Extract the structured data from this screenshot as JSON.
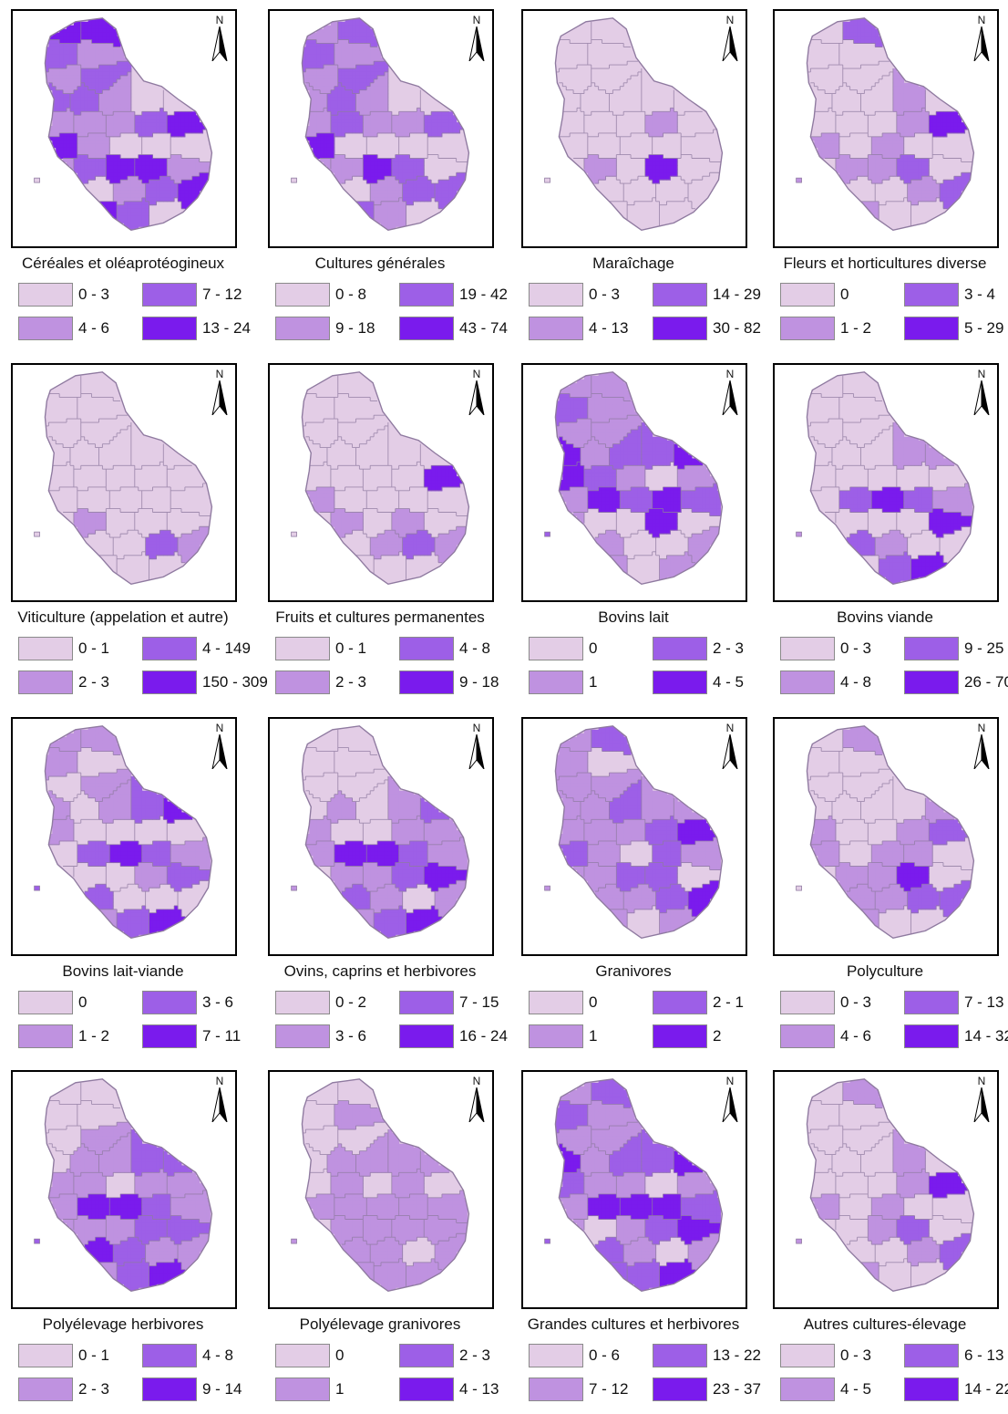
{
  "colors": {
    "class_1": "#e3cde6",
    "class_2": "#bf92e0",
    "class_3": "#9d5fe7",
    "class_4": "#7a1bed",
    "boundary": "#8f7aa0"
  },
  "north_label": "N",
  "panels": [
    {
      "title": "Céréales et oléaprotéogineux",
      "legend": [
        "0 - 3",
        "4 - 6",
        "7 - 12",
        "13 - 24"
      ],
      "shading": [
        3,
        3,
        2,
        1,
        1,
        2,
        2,
        2,
        1,
        0,
        0,
        1,
        1,
        1,
        2,
        3,
        3,
        1,
        0,
        0,
        0,
        1,
        2,
        3,
        3,
        1,
        0,
        0,
        1,
        2,
        3,
        3,
        2,
        0,
        1,
        2,
        3,
        2
      ]
    },
    {
      "title": "Cultures générales",
      "legend": [
        "0 - 8",
        "9 - 18",
        "19 - 42",
        "43 - 74"
      ],
      "shading": [
        1,
        2,
        2,
        1,
        1,
        2,
        1,
        2,
        1,
        0,
        0,
        1,
        2,
        1,
        1,
        2,
        3,
        0,
        0,
        0,
        0,
        1,
        1,
        3,
        2,
        0,
        0,
        0,
        1,
        2,
        2,
        2,
        1,
        0,
        0,
        1,
        2,
        1
      ]
    },
    {
      "title": "Maraîchage",
      "legend": [
        "0 - 3",
        "4 - 13",
        "14 - 29",
        "30 - 82"
      ],
      "shading": [
        0,
        0,
        0,
        0,
        0,
        0,
        0,
        0,
        0,
        0,
        0,
        0,
        0,
        0,
        1,
        0,
        0,
        0,
        0,
        0,
        0,
        0,
        1,
        0,
        3,
        0,
        0,
        0,
        0,
        0,
        0,
        0,
        0,
        0,
        0,
        0,
        1,
        0
      ]
    },
    {
      "title": "Fleurs et horticultures diverse",
      "legend": [
        "0",
        "1 - 2",
        "3 - 4",
        "5 - 29"
      ],
      "shading": [
        0,
        2,
        0,
        0,
        0,
        0,
        0,
        0,
        0,
        1,
        0,
        0,
        0,
        0,
        1,
        3,
        1,
        0,
        1,
        0,
        0,
        0,
        1,
        1,
        2,
        0,
        0,
        0,
        0,
        1,
        2,
        1,
        0,
        0,
        0,
        0,
        3,
        0
      ]
    },
    {
      "title": "Viticulture (appelation et autre)",
      "legend": [
        "0 - 1",
        "2 - 3",
        "4 - 149",
        "150 - 309"
      ],
      "shading": [
        0,
        0,
        0,
        0,
        0,
        0,
        0,
        0,
        0,
        0,
        0,
        0,
        0,
        0,
        0,
        0,
        0,
        0,
        0,
        0,
        0,
        0,
        1,
        0,
        0,
        0,
        0,
        0,
        0,
        2,
        1,
        0,
        0,
        0,
        1,
        2,
        3,
        0
      ]
    },
    {
      "title": "Fruits et cultures permanentes",
      "legend": [
        "0 - 1",
        "2 - 3",
        "4 - 8",
        "9 - 18"
      ],
      "shading": [
        0,
        0,
        0,
        0,
        0,
        0,
        0,
        0,
        0,
        0,
        0,
        0,
        0,
        0,
        0,
        3,
        1,
        0,
        0,
        0,
        0,
        0,
        1,
        0,
        1,
        0,
        0,
        0,
        1,
        2,
        1,
        0,
        0,
        0,
        0,
        1,
        2,
        1
      ]
    },
    {
      "title": "Bovins lait",
      "legend": [
        "0",
        "1",
        "2 - 3",
        "4 - 5"
      ],
      "shading": [
        1,
        1,
        2,
        1,
        1,
        1,
        3,
        1,
        2,
        2,
        3,
        3,
        2,
        1,
        0,
        1,
        1,
        3,
        2,
        3,
        2,
        1,
        0,
        0,
        3,
        0,
        2,
        1,
        0,
        0,
        1,
        1,
        0,
        1,
        0,
        0,
        3,
        1
      ]
    },
    {
      "title": "Bovins viande",
      "legend": [
        "0 - 3",
        "4 - 8",
        "9 - 25",
        "26 - 70"
      ],
      "shading": [
        0,
        0,
        0,
        0,
        0,
        0,
        0,
        0,
        0,
        1,
        1,
        0,
        0,
        0,
        0,
        0,
        0,
        2,
        3,
        2,
        1,
        0,
        0,
        0,
        0,
        3,
        3,
        2,
        1,
        0,
        0,
        0,
        2,
        3,
        2,
        1,
        0,
        0
      ]
    },
    {
      "title": "Bovins lait-viande",
      "legend": [
        "0",
        "1 - 2",
        "3 - 6",
        "7 - 11"
      ],
      "shading": [
        1,
        1,
        1,
        0,
        0,
        1,
        1,
        0,
        1,
        2,
        3,
        1,
        0,
        0,
        0,
        0,
        0,
        2,
        3,
        2,
        1,
        0,
        0,
        0,
        1,
        2,
        2,
        2,
        0,
        0,
        0,
        1,
        2,
        3,
        1,
        0,
        0,
        0
      ]
    },
    {
      "title": "Ovins, caprins et herbivores",
      "legend": [
        "0 - 2",
        "3 - 6",
        "7 - 15",
        "16 - 24"
      ],
      "shading": [
        0,
        0,
        0,
        0,
        0,
        0,
        0,
        1,
        0,
        1,
        2,
        1,
        0,
        0,
        1,
        1,
        1,
        3,
        3,
        2,
        1,
        0,
        1,
        1,
        2,
        3,
        3,
        2,
        1,
        0,
        1,
        1,
        2,
        3,
        1,
        1,
        1,
        0
      ]
    },
    {
      "title": "Granivores",
      "legend": [
        "0",
        "1",
        "2 - 1",
        "2"
      ],
      "shading": [
        1,
        2,
        1,
        0,
        1,
        1,
        1,
        1,
        2,
        1,
        1,
        1,
        1,
        1,
        2,
        3,
        2,
        1,
        0,
        2,
        1,
        1,
        1,
        2,
        2,
        0,
        1,
        1,
        1,
        2,
        3,
        1,
        0,
        1,
        1,
        1,
        2,
        1
      ]
    },
    {
      "title": "Polyculture",
      "legend": [
        "0 - 3",
        "4 - 6",
        "7 - 13",
        "14 - 32"
      ],
      "shading": [
        0,
        1,
        0,
        0,
        0,
        0,
        0,
        0,
        0,
        0,
        1,
        1,
        0,
        0,
        1,
        2,
        1,
        0,
        1,
        1,
        0,
        0,
        1,
        1,
        3,
        0,
        0,
        1,
        1,
        2,
        2,
        1,
        0,
        0,
        0,
        1,
        3,
        1
      ]
    },
    {
      "title": "Polyélevage herbivores",
      "legend": [
        "0 - 1",
        "2 - 3",
        "4 - 8",
        "9 - 14"
      ],
      "shading": [
        0,
        0,
        0,
        0,
        0,
        1,
        0,
        1,
        1,
        2,
        2,
        1,
        1,
        0,
        1,
        1,
        1,
        3,
        3,
        2,
        1,
        1,
        1,
        1,
        2,
        2,
        3,
        3,
        2,
        1,
        1,
        1,
        2,
        3,
        2,
        1,
        1,
        1
      ]
    },
    {
      "title": "Polyélevage granivores",
      "legend": [
        "0",
        "1",
        "2 - 3",
        "4 - 13"
      ],
      "shading": [
        0,
        0,
        0,
        1,
        0,
        0,
        0,
        1,
        1,
        1,
        1,
        0,
        1,
        0,
        1,
        0,
        1,
        1,
        1,
        1,
        1,
        0,
        1,
        1,
        1,
        1,
        0,
        1,
        1,
        0,
        1,
        1,
        1,
        1,
        0,
        1,
        1,
        1
      ]
    },
    {
      "title": "Grandes cultures et herbivores",
      "legend": [
        "0 - 6",
        "7 - 12",
        "13 - 22",
        "23 - 37"
      ],
      "shading": [
        1,
        2,
        2,
        1,
        1,
        1,
        3,
        1,
        2,
        2,
        3,
        2,
        1,
        1,
        0,
        1,
        1,
        3,
        3,
        3,
        2,
        1,
        0,
        1,
        2,
        3,
        3,
        2,
        1,
        0,
        1,
        2,
        2,
        3,
        1,
        1,
        0,
        1
      ]
    },
    {
      "title": "Autres cultures-élevage",
      "legend": [
        "0 - 3",
        "4 - 5",
        "6 - 13",
        "14 - 22"
      ],
      "shading": [
        0,
        1,
        0,
        0,
        0,
        0,
        0,
        0,
        0,
        1,
        0,
        0,
        0,
        0,
        1,
        3,
        1,
        0,
        1,
        0,
        0,
        0,
        0,
        1,
        2,
        0,
        0,
        0,
        0,
        1,
        2,
        1,
        0,
        0,
        0,
        1,
        2,
        0
      ]
    }
  ]
}
